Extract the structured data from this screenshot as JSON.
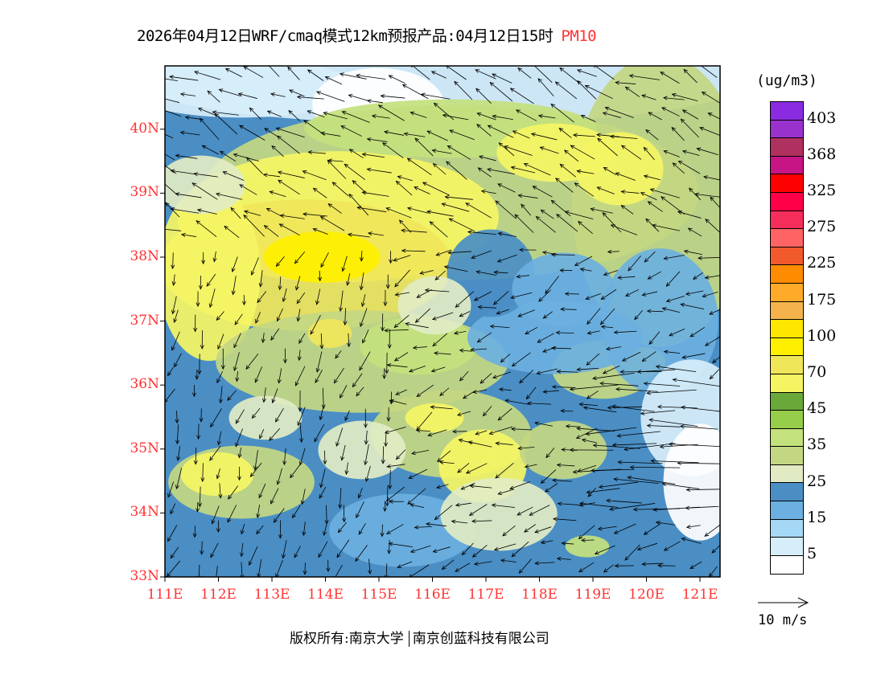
{
  "title": {
    "main": "2026年04月12日WRF/cmaq模式12km预报产品:04月12日15时",
    "pollutant": "PM10"
  },
  "axes": {
    "lat_labels": [
      "33N",
      "34N",
      "35N",
      "36N",
      "37N",
      "38N",
      "39N",
      "40N"
    ],
    "lon_labels": [
      "111E",
      "112E",
      "113E",
      "114E",
      "115E",
      "116E",
      "117E",
      "118E",
      "119E",
      "120E",
      "121E"
    ],
    "lat_range": [
      33,
      41
    ],
    "lon_range": [
      111,
      121.4
    ]
  },
  "legend": {
    "unit": "(ug/m3)",
    "labels": [
      "403",
      "368",
      "325",
      "275",
      "225",
      "175",
      "100",
      "70",
      "45",
      "35",
      "25",
      "15",
      "5"
    ],
    "colors": [
      "#8a2be2",
      "#9932cc",
      "#b03060",
      "#c71585",
      "#ff0000",
      "#ff0048",
      "#f52d5a",
      "#ff6464",
      "#f05a2d",
      "#ff8c00",
      "#ffaa28",
      "#f5b44b",
      "#ffe600",
      "#fff000",
      "#f0e65a",
      "#f5f564",
      "#6aa83a",
      "#96cd4b",
      "#c3e17d",
      "#c3d782",
      "#e1ebc3",
      "#4a8ec4",
      "#6bb0e0",
      "#a5d8f5",
      "#d7eefa",
      "#ffffff"
    ]
  },
  "wind_reference": {
    "label": "10 m/s"
  },
  "footer": {
    "left": "版权所有:南京大学",
    "right": "南京创蓝科技有限公司"
  }
}
